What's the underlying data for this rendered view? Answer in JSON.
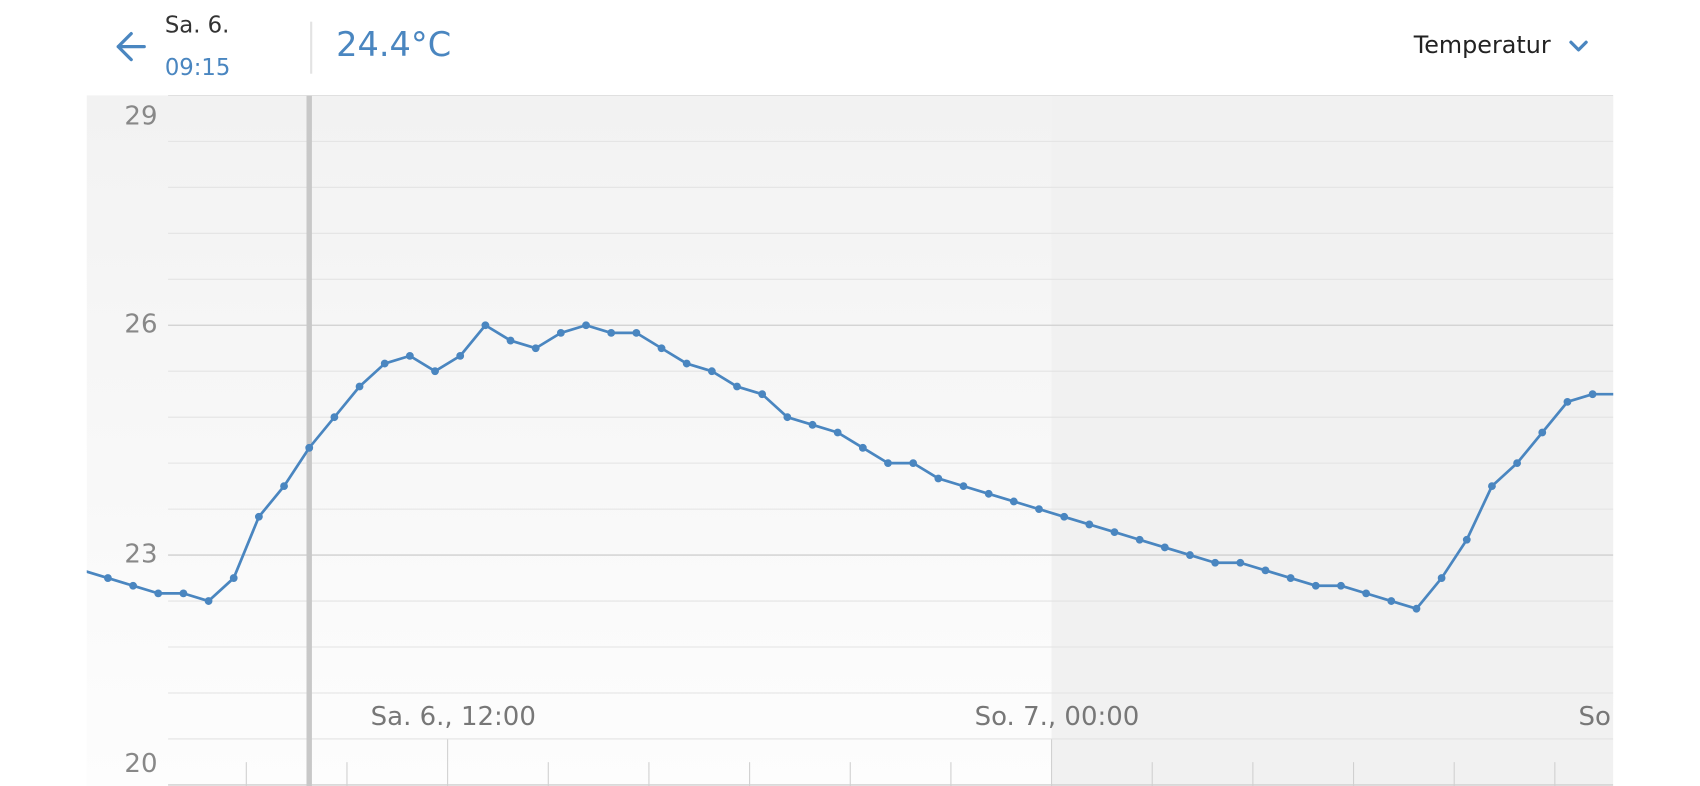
{
  "header": {
    "date": "Sa. 6.",
    "time": "09:15",
    "reading": "24.4°C",
    "metric": "Temperatur"
  },
  "chart_data": {
    "type": "line",
    "color": "#4a86c0",
    "x": [
      4.75,
      5.25,
      5.75,
      6.25,
      6.75,
      7.25,
      7.75,
      8.25,
      8.75,
      9.25,
      9.75,
      10.25,
      10.75,
      11.25,
      11.75,
      12.25,
      12.75,
      13.25,
      13.75,
      14.25,
      14.75,
      15.25,
      15.75,
      16.25,
      16.75,
      17.25,
      17.75,
      18.25,
      18.75,
      19.25,
      19.75,
      20.25,
      20.75,
      21.25,
      21.75,
      22.25,
      22.75,
      23.25,
      23.75,
      24.25,
      24.75,
      25.25,
      25.75,
      26.25,
      26.75,
      27.25,
      27.75,
      28.25,
      28.75,
      29.25,
      29.75,
      30.25,
      30.75,
      31.25,
      31.75,
      32.25,
      32.75,
      33.25,
      33.75,
      34.25,
      34.75,
      35.25
    ],
    "values": [
      22.8,
      22.7,
      22.6,
      22.5,
      22.5,
      22.4,
      22.7,
      23.5,
      23.9,
      24.4,
      24.8,
      25.2,
      25.5,
      25.6,
      25.4,
      25.6,
      26.0,
      25.8,
      25.7,
      25.9,
      26.0,
      25.9,
      25.9,
      25.7,
      25.5,
      25.4,
      25.2,
      25.1,
      24.8,
      24.7,
      24.6,
      24.4,
      24.2,
      24.2,
      24.0,
      23.9,
      23.8,
      23.7,
      23.6,
      23.5,
      23.4,
      23.3,
      23.2,
      23.1,
      23.0,
      22.9,
      22.9,
      22.8,
      22.7,
      22.6,
      22.6,
      22.5,
      22.4,
      22.3,
      22.7,
      23.2,
      23.9,
      24.2,
      24.6,
      25.0,
      25.1,
      25.1
    ],
    "cursor": 9.25,
    "night_from": 24,
    "xlim": [
      4.83,
      35.16
    ],
    "xticks": [
      {
        "value": 12,
        "label": "Sa. 6., 12:00"
      },
      {
        "value": 24,
        "label": "So. 7., 00:00"
      },
      {
        "value": 36,
        "label": "So"
      }
    ],
    "xminorticks": [
      8,
      10,
      14,
      16,
      18,
      20,
      22,
      26,
      28,
      30,
      32,
      34
    ],
    "ylim": [
      20,
      29
    ],
    "yticks": [
      20,
      23,
      26,
      29
    ],
    "yminorticks": [
      20.6,
      21.2,
      21.8,
      22.4,
      23.6,
      24.2,
      24.8,
      25.4,
      26.6,
      27.2,
      27.8,
      28.4
    ],
    "grid": true
  }
}
